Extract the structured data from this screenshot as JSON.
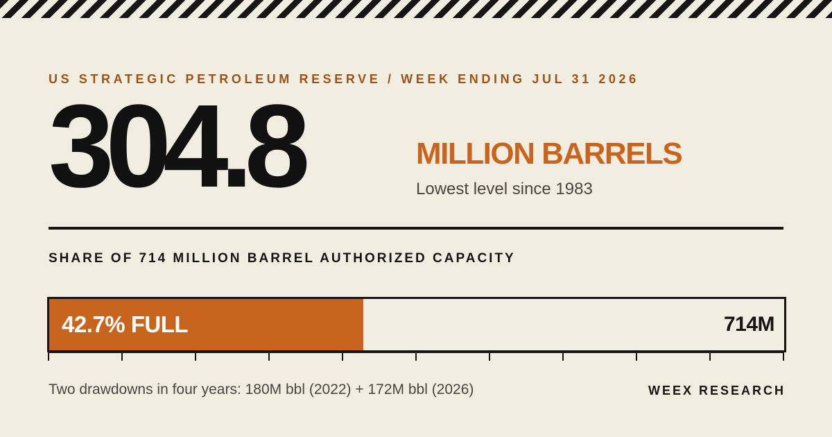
{
  "header": {
    "eyebrow": "US STRATEGIC PETROLEUM RESERVE / WEEK ENDING JUL 31 2026"
  },
  "headline": {
    "value": "304.8",
    "unit": "MILLION BARRELS",
    "subtitle": "Lowest level since 1983"
  },
  "capacity": {
    "title": "SHARE OF 714 MILLION BARREL AUTHORIZED CAPACITY",
    "fill_percent": 42.7,
    "fill_label": "42.7% FULL",
    "capacity_label": "714M",
    "tick_count": 11
  },
  "footer": {
    "note": "Two drawdowns in four years: 180M bbl (2022) + 172M bbl (2026)",
    "brand": "WEEX RESEARCH"
  },
  "colors": {
    "background": "#f2ede1",
    "accent": "#c8641d",
    "eyebrow": "#9a5418",
    "ink": "#151515"
  }
}
